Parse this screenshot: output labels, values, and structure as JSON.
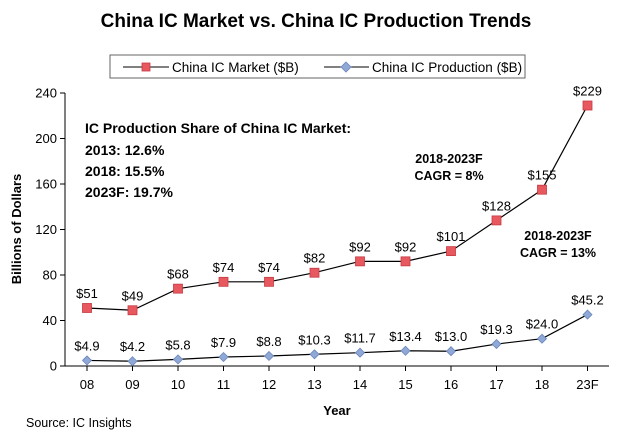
{
  "chart_data": {
    "type": "line",
    "title": "China IC Market vs. China IC Production Trends",
    "xlabel": "Year",
    "ylabel": "Billions of Dollars",
    "ylim": [
      0,
      240
    ],
    "yticks": [
      0,
      40,
      80,
      120,
      160,
      200,
      240
    ],
    "grid": false,
    "legend_position": "top-center",
    "categories": [
      "08",
      "09",
      "10",
      "11",
      "12",
      "13",
      "14",
      "15",
      "16",
      "17",
      "18",
      "23F"
    ],
    "series": [
      {
        "name": "China IC Market ($B)",
        "marker": "square",
        "color": "#e8585f",
        "line_color": "#000000",
        "values": [
          51,
          49,
          68,
          74,
          74,
          82,
          92,
          92,
          101,
          128,
          155,
          229
        ],
        "labels": [
          "$51",
          "$49",
          "$68",
          "$74",
          "$74",
          "$82",
          "$92",
          "$92",
          "$101",
          "$128",
          "$155",
          "$229"
        ]
      },
      {
        "name": "China IC Production ($B)",
        "marker": "diamond",
        "color": "#8fa8d6",
        "line_color": "#000000",
        "values": [
          4.9,
          4.2,
          5.8,
          7.9,
          8.8,
          10.3,
          11.7,
          13.4,
          13.0,
          19.3,
          24.0,
          45.2
        ],
        "labels": [
          "$4.9",
          "$4.2",
          "$5.8",
          "$7.9",
          "$8.8",
          "$10.3",
          "$11.7",
          "$13.4",
          "$13.0",
          "$19.3",
          "$24.0",
          "$45.2"
        ]
      }
    ],
    "annotations": {
      "share_heading": "IC Production Share of China IC Market:",
      "share_lines": [
        "2013: 12.6%",
        "2018: 15.5%",
        "2023F: 19.7%"
      ],
      "market_cagr_period": "2018-2023F",
      "market_cagr_value": "CAGR = 8%",
      "production_cagr_period": "2018-2023F",
      "production_cagr_value": "CAGR = 13%"
    },
    "source": "Source: IC Insights"
  }
}
